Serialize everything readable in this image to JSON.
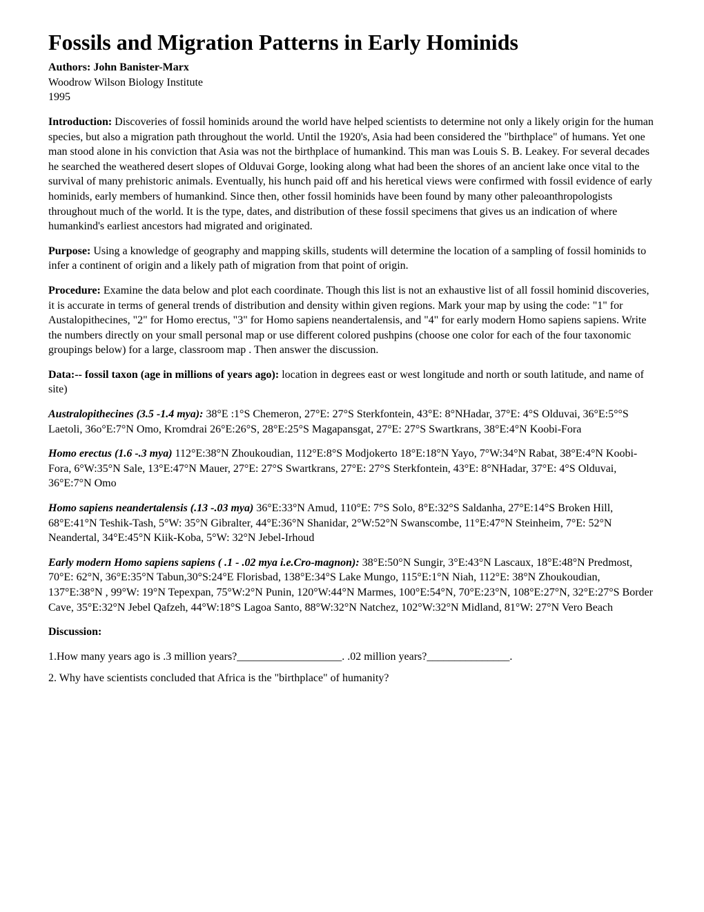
{
  "title": "Fossils and Migration Patterns in Early Hominids",
  "authors_label": "Authors: ",
  "authors": "John Banister-Marx",
  "institute": "Woodrow Wilson Biology Institute",
  "year": "1995",
  "intro_label": "Introduction: ",
  "intro_text": "Discoveries of fossil hominids around the world have helped scientists to determine not only a likely origin for the human species, but also a migration path throughout the world. Until the 1920's, Asia had been considered the \"birthplace\" of humans. Yet one man stood alone in his conviction that Asia was not the birthplace of humankind. This man was Louis S. B. Leakey. For several decades he searched the weathered desert slopes of Olduvai Gorge, looking along what had been the shores of an ancient lake once vital to the survival of many prehistoric animals. Eventually, his hunch paid off and his heretical views were confirmed with fossil evidence of early hominids, early members of humankind. Since then, other fossil hominids have been found by many other paleoanthropologists throughout much of the world. It is the type, dates, and distribution of these fossil specimens that gives us an indication of where humankind's earliest ancestors had migrated and originated.",
  "purpose_label": "Purpose: ",
  "purpose_text": "Using a knowledge of geography and mapping skills, students will determine the location of a sampling of fossil hominids to infer a continent of origin and a likely path of migration from that point of origin.",
  "procedure_label": "Procedure: ",
  "procedure_text": "Examine the data below and plot each coordinate. Though this list is not an exhaustive list of all fossil hominid discoveries, it is accurate in terms of general trends of distribution and density within given regions. Mark your map by using the code: \"1\" for Austalopithecines, \"2\" for Homo erectus, \"3\" for Homo sapiens neandertalensis, and \"4\" for early modern Homo sapiens sapiens. Write the numbers directly on your small personal map or use different colored pushpins (choose one color for each of the four taxonomic groupings below) for a large, classroom map . Then answer the discussion.",
  "data_label": "Data:-- fossil taxon (age in millions of years ago): ",
  "data_text": "location in degrees east or west longitude and north or south latitude, and name of site)",
  "taxa": {
    "australo_label": "Australopithecines (3.5 -1.4 mya): ",
    "australo_text": "38°E :1°S Chemeron, 27°E: 27°S Sterkfontein, 43°E: 8°NHadar, 37°E: 4°S Olduvai, 36°E:5°°S Laetoli, 36o°E:7°N Omo, Kromdrai 26°E:26°S, 28°E:25°S Magapansgat, 27°E: 27°S Swartkrans, 38°E:4°N Koobi-Fora",
    "erectus_label": "Homo erectus (1.6 -.3 mya) ",
    "erectus_text": "112°E:38°N Zhoukoudian, 112°E:8°S Modjokerto 18°E:18°N Yayo, 7°W:34°N Rabat, 38°E:4°N Koobi-Fora, 6°W:35°N Sale, 13°E:47°N Mauer, 27°E: 27°S Swartkrans, 27°E: 27°S Sterkfontein, 43°E: 8°NHadar, 37°E: 4°S Olduvai, 36°E:7°N Omo",
    "neander_label": "Homo sapiens neandertalensis (.13 -.03 mya) ",
    "neander_text": "36°E:33°N Amud, 110°E: 7°S Solo, 8°E:32°S Saldanha, 27°E:14°S Broken Hill, 68°E:41°N Teshik-Tash, 5°W: 35°N Gibralter, 44°E:36°N Shanidar, 2°W:52°N Swanscombe, 11°E:47°N Steinheim, 7°E: 52°N Neandertal, 34°E:45°N Kiik-Koba, 5°W: 32°N Jebel-Irhoud",
    "sapiens_label": "Early modern Homo sapiens sapiens ( .1 - .02 mya i.e.Cro-magnon): ",
    "sapiens_text": "38°E:50°N Sungir, 3°E:43°N Lascaux, 18°E:48°N Predmost, 70°E: 62°N, 36°E:35°N Tabun,30°S:24°E Florisbad, 138°E:34°S Lake Mungo, 115°E:1°N Niah, 112°E: 38°N Zhoukoudian, 137°E:38°N , 99°W: 19°N Tepexpan, 75°W:2°N Punin, 120°W:44°N Marmes, 100°E:54°N, 70°E:23°N, 108°E:27°N, 32°E:27°S Border Cave, 35°E:32°N Jebel Qafzeh, 44°W:18°S Lagoa Santo, 88°W:32°N Natchez, 102°W:32°N Midland, 81°W: 27°N Vero Beach"
  },
  "discussion_label": "Discussion:",
  "q1": "1.How many years ago is .3 million years?___________________. .02 million years?_______________.",
  "q2": "2. Why have scientists concluded that Africa is the \"birthplace\" of humanity?"
}
